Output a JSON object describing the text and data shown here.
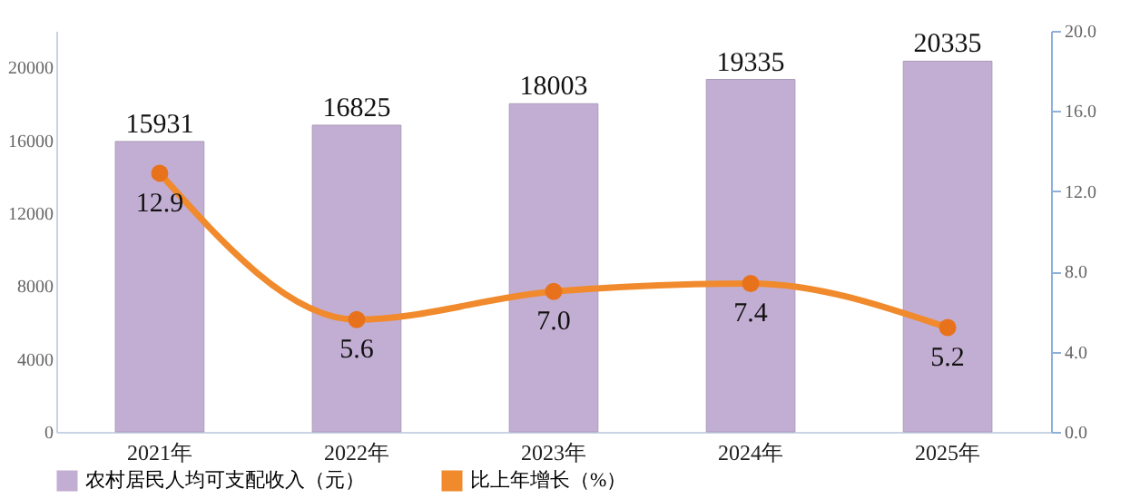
{
  "chart_data": {
    "type": "bar",
    "categories": [
      "2021年",
      "2022年",
      "2023年",
      "2024年",
      "2025年"
    ],
    "series": [
      {
        "name": "农村居民人均可支配收入（元）",
        "color": "#c3aed3",
        "values": [
          15931,
          16825,
          18003,
          19335,
          20335
        ]
      },
      {
        "name": "比上年增长（%）",
        "type": "line",
        "axis": "y2",
        "color": "#f08a2c",
        "marker": "circle",
        "values": [
          12.9,
          5.6,
          7.0,
          7.4,
          5.2
        ],
        "value_labels": [
          "12.9",
          "5.6",
          "7.0",
          "7.4",
          "5.2"
        ]
      }
    ],
    "data_labels": true,
    "ylim": [
      0,
      22000
    ],
    "yticks": [
      0,
      4000,
      8000,
      12000,
      16000,
      20000
    ],
    "y2lim": [
      0,
      20
    ],
    "y2ticks": [
      {
        "value": 0,
        "label": "0.0"
      },
      {
        "value": 4,
        "label": "4.0"
      },
      {
        "value": 8,
        "label": "8.0"
      },
      {
        "value": 12,
        "label": "12.0"
      },
      {
        "value": 16,
        "label": "16.0"
      },
      {
        "value": 20,
        "label": "20.0"
      }
    ],
    "grid": false,
    "legend": "bottom"
  }
}
